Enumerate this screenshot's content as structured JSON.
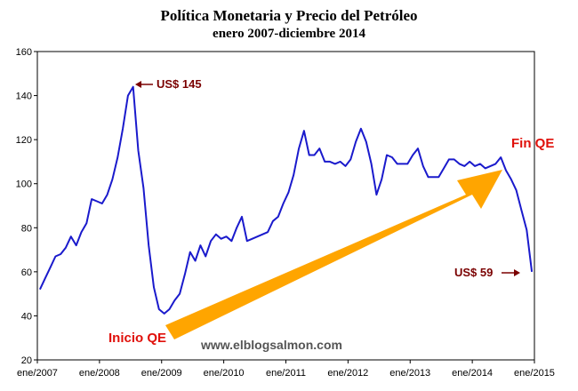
{
  "chart_data": {
    "type": "line",
    "title": "Política Monetaria y Precio del Petróleo",
    "subtitle": "enero 2007-diciembre 2014",
    "xlabel": "",
    "ylabel": "",
    "x_tick_labels": [
      "ene/2007",
      "ene/2008",
      "ene/2009",
      "ene/2010",
      "ene/2011",
      "ene/2012",
      "ene/2013",
      "ene/2014",
      "ene/2015"
    ],
    "y_tick_labels": [
      "20",
      "40",
      "60",
      "80",
      "100",
      "120",
      "140",
      "160"
    ],
    "xlim": [
      "2007-01",
      "2015-01"
    ],
    "ylim": [
      20,
      160
    ],
    "grid": false,
    "legend": "none",
    "line_color": "#1a1acc",
    "series": [
      {
        "x": [
          "2007-01",
          "2007-02",
          "2007-03",
          "2007-04",
          "2007-05",
          "2007-06",
          "2007-07",
          "2007-08",
          "2007-09",
          "2007-10",
          "2007-11",
          "2007-12",
          "2008-01",
          "2008-02",
          "2008-03",
          "2008-04",
          "2008-05",
          "2008-06",
          "2008-07",
          "2008-08",
          "2008-09",
          "2008-10",
          "2008-11",
          "2008-12",
          "2009-01",
          "2009-02",
          "2009-03",
          "2009-04",
          "2009-05",
          "2009-06",
          "2009-07",
          "2009-08",
          "2009-09",
          "2009-10",
          "2009-11",
          "2009-12",
          "2010-01",
          "2010-02",
          "2010-03",
          "2010-04",
          "2010-05",
          "2010-06",
          "2010-07",
          "2010-08",
          "2010-09",
          "2010-10",
          "2010-11",
          "2010-12",
          "2011-01",
          "2011-02",
          "2011-03",
          "2011-04",
          "2011-05",
          "2011-06",
          "2011-07",
          "2011-08",
          "2011-09",
          "2011-10",
          "2011-11",
          "2011-12",
          "2012-01",
          "2012-02",
          "2012-03",
          "2012-04",
          "2012-05",
          "2012-06",
          "2012-07",
          "2012-08",
          "2012-09",
          "2012-10",
          "2012-11",
          "2012-12",
          "2013-01",
          "2013-02",
          "2013-03",
          "2013-04",
          "2013-05",
          "2013-06",
          "2013-07",
          "2013-08",
          "2013-09",
          "2013-10",
          "2013-11",
          "2013-12",
          "2014-01",
          "2014-02",
          "2014-03",
          "2014-04",
          "2014-05",
          "2014-06",
          "2014-07",
          "2014-08",
          "2014-09",
          "2014-10",
          "2014-11",
          "2014-12"
        ],
        "values": [
          52,
          57,
          62,
          67,
          68,
          71,
          76,
          72,
          78,
          82,
          93,
          92,
          91,
          95,
          102,
          112,
          125,
          140,
          144,
          115,
          98,
          72,
          53,
          43,
          41,
          43,
          47,
          50,
          59,
          69,
          65,
          72,
          67,
          74,
          77,
          75,
          76,
          74,
          80,
          85,
          74,
          75,
          76,
          77,
          78,
          83,
          85,
          91,
          96,
          104,
          116,
          124,
          113,
          113,
          116,
          110,
          110,
          109,
          110,
          108,
          111,
          119,
          125,
          119,
          109,
          95,
          102,
          113,
          112,
          109,
          109,
          109,
          113,
          116,
          108,
          103,
          103,
          103,
          107,
          111,
          111,
          109,
          108,
          110,
          108,
          109,
          107,
          108,
          109,
          112,
          106,
          102,
          97,
          88,
          79,
          60
        ]
      }
    ],
    "annotations": {
      "peak": "US$ 145",
      "end": "US$ 59",
      "qe_start": "Inicio QE",
      "qe_end": "Fin QE"
    },
    "watermark": "www.elblogsalmon.com",
    "arrow_color": "#ffa500"
  }
}
